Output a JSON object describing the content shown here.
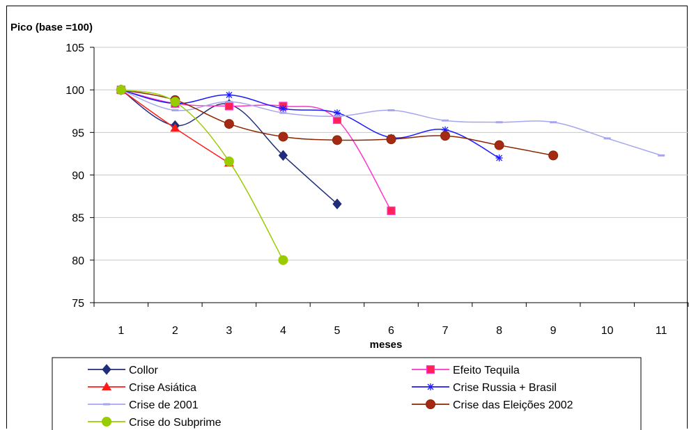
{
  "chart_data": {
    "type": "line",
    "ylabel": "Pico (base =100)",
    "xlabel": "meses",
    "xlim": [
      0.5,
      11.5
    ],
    "ylim": [
      75,
      105
    ],
    "yticks": [
      75,
      80,
      85,
      90,
      95,
      100,
      105
    ],
    "xticks": [
      1,
      2,
      3,
      4,
      5,
      6,
      7,
      8,
      9,
      10,
      11
    ],
    "grid": "horizontal",
    "legend": "bottom",
    "series": [
      {
        "name": "Collor",
        "color": "#1f2d7a",
        "marker": "diamond",
        "x": [
          1,
          2,
          3,
          4,
          5
        ],
        "values": [
          100,
          95.8,
          98.3,
          92.3,
          86.6
        ]
      },
      {
        "name": "Efeito Tequila",
        "color": "#ff33cc",
        "marker": "square",
        "marker_fill": "#ff2255",
        "x": [
          1,
          2,
          3,
          4,
          5,
          6
        ],
        "values": [
          100,
          98.4,
          98.1,
          98.1,
          96.5,
          85.8
        ]
      },
      {
        "name": "Crise Asiática",
        "color": "#ff1a1a",
        "marker": "triangle",
        "x": [
          1,
          2,
          3
        ],
        "values": [
          100,
          95.5,
          91.4
        ]
      },
      {
        "name": "Crise Russia + Brasil",
        "color": "#1a1aff",
        "marker": "asterisk",
        "x": [
          1,
          2,
          3,
          4,
          5,
          6,
          7,
          8
        ],
        "values": [
          100,
          98.4,
          99.4,
          97.8,
          97.3,
          94.4,
          95.3,
          92.0
        ]
      },
      {
        "name": "Crise de 2001",
        "color": "#a6a6ee",
        "marker": "dash",
        "x": [
          1,
          2,
          3,
          4,
          5,
          6,
          7,
          8,
          9,
          10,
          11
        ],
        "values": [
          100,
          97.6,
          98.6,
          97.3,
          96.9,
          97.6,
          96.4,
          96.2,
          96.2,
          94.3,
          92.3
        ]
      },
      {
        "name": "Crise das Eleições 2002",
        "color": "#8b2500",
        "marker": "circle",
        "marker_fill": "#a52a16",
        "x": [
          1,
          2,
          3,
          4,
          5,
          6,
          7,
          8,
          9
        ],
        "values": [
          100,
          98.8,
          96.0,
          94.5,
          94.1,
          94.2,
          94.6,
          93.5,
          92.3
        ]
      },
      {
        "name": "Crise do Subprime",
        "color": "#99cc00",
        "marker": "circle",
        "marker_fill": "#99cc00",
        "x": [
          1,
          2,
          3,
          4
        ],
        "values": [
          100,
          98.6,
          91.6,
          80.0
        ]
      }
    ]
  }
}
